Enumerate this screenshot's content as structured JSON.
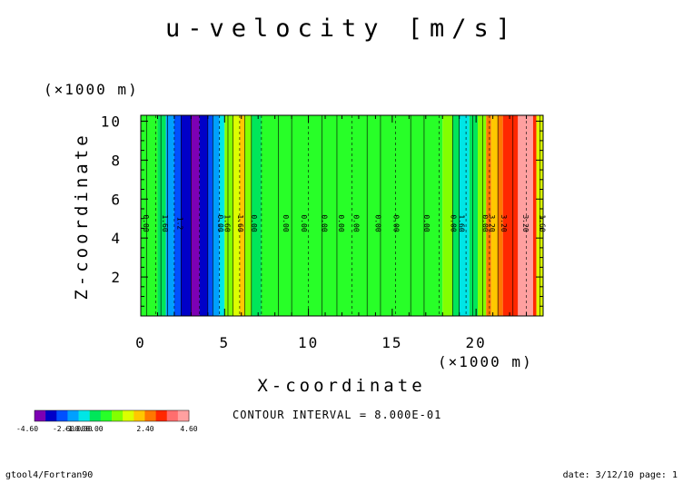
{
  "chart_data": {
    "type": "heatmap",
    "title": "u-velocity [m/s]",
    "xlabel": "X-coordinate",
    "ylabel": "Z-coordinate",
    "x_scale_label": "(×1000 m)",
    "y_scale_label": "(×1000 m)",
    "xlim": [
      0,
      24
    ],
    "ylim": [
      0,
      10.3
    ],
    "x_ticks": [
      "0",
      "5",
      "10",
      "15",
      "20"
    ],
    "y_ticks": [
      "2",
      "4",
      "6",
      "8",
      "10"
    ],
    "x_tick_values": [
      0,
      5,
      10,
      15,
      20
    ],
    "y_tick_values": [
      2,
      4,
      6,
      8,
      10
    ],
    "grid": false,
    "contour_interval_text": "CONTOUR INTERVAL = 8.000E-01",
    "colorbar": {
      "colors": [
        "#7d00b4",
        "#0000c8",
        "#0050ff",
        "#00a0ff",
        "#00e6e6",
        "#00e65a",
        "#28ff28",
        "#82ff00",
        "#dcff00",
        "#ffc800",
        "#ff7800",
        "#ff2800",
        "#ff6e6e",
        "#ffa0a0"
      ],
      "labels": [
        "-4.60",
        "-2.60",
        "-1.00",
        "0.00",
        "0.00",
        "2.40",
        "4.60"
      ]
    },
    "bands": [
      {
        "x0": 0.0,
        "x1": 1.0,
        "color": "#28ff28"
      },
      {
        "x0": 1.0,
        "x1": 1.5,
        "color": "#00e65a"
      },
      {
        "x0": 1.5,
        "x1": 2.0,
        "color": "#00a0ff"
      },
      {
        "x0": 2.0,
        "x1": 2.4,
        "color": "#0050ff"
      },
      {
        "x0": 2.4,
        "x1": 3.0,
        "color": "#0000c8"
      },
      {
        "x0": 3.0,
        "x1": 3.5,
        "color": "#7d00b4"
      },
      {
        "x0": 3.5,
        "x1": 4.0,
        "color": "#0000c8"
      },
      {
        "x0": 4.0,
        "x1": 4.3,
        "color": "#0050ff"
      },
      {
        "x0": 4.3,
        "x1": 4.7,
        "color": "#00a0ff"
      },
      {
        "x0": 4.7,
        "x1": 5.0,
        "color": "#00e6e6"
      },
      {
        "x0": 5.0,
        "x1": 5.5,
        "color": "#82ff00"
      },
      {
        "x0": 5.5,
        "x1": 5.9,
        "color": "#dcff00"
      },
      {
        "x0": 5.9,
        "x1": 6.2,
        "color": "#ffc800"
      },
      {
        "x0": 6.2,
        "x1": 6.6,
        "color": "#82ff00"
      },
      {
        "x0": 6.6,
        "x1": 7.2,
        "color": "#00e65a"
      },
      {
        "x0": 7.2,
        "x1": 18.0,
        "color": "#28ff28"
      },
      {
        "x0": 18.0,
        "x1": 18.6,
        "color": "#82ff00"
      },
      {
        "x0": 18.6,
        "x1": 19.0,
        "color": "#00e65a"
      },
      {
        "x0": 19.0,
        "x1": 19.6,
        "color": "#00e6e6"
      },
      {
        "x0": 19.6,
        "x1": 20.1,
        "color": "#00e65a"
      },
      {
        "x0": 20.1,
        "x1": 20.6,
        "color": "#82ff00"
      },
      {
        "x0": 20.6,
        "x1": 20.9,
        "color": "#ff7800"
      },
      {
        "x0": 20.9,
        "x1": 21.3,
        "color": "#ffc800"
      },
      {
        "x0": 21.3,
        "x1": 21.6,
        "color": "#ff7800"
      },
      {
        "x0": 21.6,
        "x1": 22.5,
        "color": "#ff2800"
      },
      {
        "x0": 22.5,
        "x1": 23.4,
        "color": "#ffa0a0"
      },
      {
        "x0": 23.4,
        "x1": 23.6,
        "color": "#ff2800"
      },
      {
        "x0": 23.6,
        "x1": 24.0,
        "color": "#dcff00"
      }
    ],
    "contour_lines": [
      0.35,
      0.9,
      1.2,
      1.6,
      2.0,
      2.4,
      3.0,
      3.5,
      4.0,
      4.3,
      4.7,
      5.2,
      5.5,
      5.9,
      6.2,
      6.6,
      7.2,
      8.2,
      9.0,
      10.0,
      10.8,
      11.7,
      12.6,
      13.5,
      14.3,
      15.2,
      16.1,
      16.9,
      17.8,
      18.6,
      19.0,
      19.4,
      19.8,
      20.4,
      20.8,
      21.3,
      22.2,
      23.0,
      23.8
    ],
    "contour_labels": [
      {
        "x": 0.15,
        "text": "0.00"
      },
      {
        "x": 1.3,
        "text": "1.60"
      },
      {
        "x": 2.2,
        "text": "1.2"
      },
      {
        "x": 4.6,
        "text": "0.00"
      },
      {
        "x": 5.0,
        "text": "1.60"
      },
      {
        "x": 5.8,
        "text": "1.60"
      },
      {
        "x": 6.6,
        "text": "0.00"
      },
      {
        "x": 8.5,
        "text": "0.00"
      },
      {
        "x": 9.6,
        "text": "0.00"
      },
      {
        "x": 10.8,
        "text": "0.00"
      },
      {
        "x": 11.8,
        "text": "0.00"
      },
      {
        "x": 12.7,
        "text": "0.00"
      },
      {
        "x": 14.0,
        "text": "0.00"
      },
      {
        "x": 15.1,
        "text": "0.00"
      },
      {
        "x": 16.9,
        "text": "0.00"
      },
      {
        "x": 18.5,
        "text": "0.00"
      },
      {
        "x": 19.0,
        "text": "1.60"
      },
      {
        "x": 20.4,
        "text": "0.00"
      },
      {
        "x": 20.8,
        "text": "3.20"
      },
      {
        "x": 21.5,
        "text": "3.20"
      },
      {
        "x": 22.8,
        "text": "3.20"
      },
      {
        "x": 23.8,
        "text": "1.60"
      }
    ]
  },
  "footer": {
    "left": "gtool4/Fortran90",
    "right": "date: 3/12/10 page: 1"
  }
}
